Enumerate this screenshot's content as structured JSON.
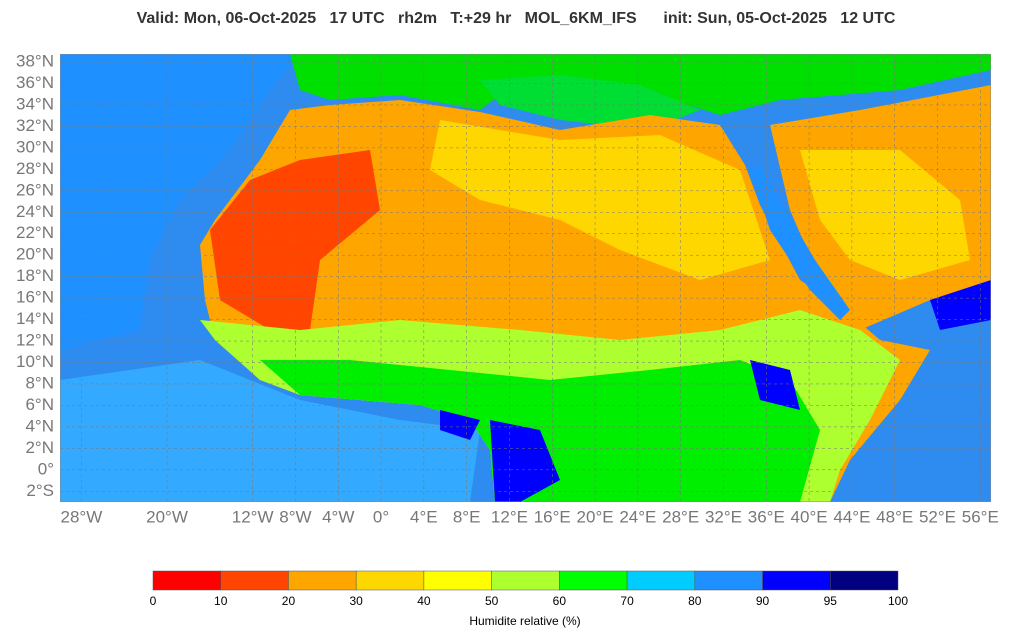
{
  "title": "Valid: Mon, 06-Oct-2025   17 UTC   rh2m   T:+29 hr   MOL_6KM_IFS      init: Sun, 05-Oct-2025   12 UTC",
  "map": {
    "lon_range": [
      -30,
      57
    ],
    "lat_range": [
      -3,
      38.75
    ],
    "lat_ticks": [
      {
        "value": 38,
        "label": "38°N"
      },
      {
        "value": 36,
        "label": "36°N"
      },
      {
        "value": 34,
        "label": "34°N"
      },
      {
        "value": 32,
        "label": "32°N"
      },
      {
        "value": 30,
        "label": "30°N"
      },
      {
        "value": 28,
        "label": "28°N"
      },
      {
        "value": 26,
        "label": "26°N"
      },
      {
        "value": 24,
        "label": "24°N"
      },
      {
        "value": 22,
        "label": "22°N"
      },
      {
        "value": 20,
        "label": "20°N"
      },
      {
        "value": 18,
        "label": "18°N"
      },
      {
        "value": 16,
        "label": "16°N"
      },
      {
        "value": 14,
        "label": "14°N"
      },
      {
        "value": 12,
        "label": "12°N"
      },
      {
        "value": 10,
        "label": "10°N"
      },
      {
        "value": 8,
        "label": "8°N"
      },
      {
        "value": 6,
        "label": "6°N"
      },
      {
        "value": 4,
        "label": "4°N"
      },
      {
        "value": 2,
        "label": "2°N"
      },
      {
        "value": 0,
        "label": "0°"
      },
      {
        "value": -2,
        "label": "2°S"
      }
    ],
    "lon_ticks": [
      {
        "value": -28,
        "label": "28°W"
      },
      {
        "value": -20,
        "label": "20°W"
      },
      {
        "value": -12,
        "label": "12°W"
      },
      {
        "value": -8,
        "label": "8°W"
      },
      {
        "value": -4,
        "label": "4°W"
      },
      {
        "value": 0,
        "label": "0°"
      },
      {
        "value": 4,
        "label": "4°E"
      },
      {
        "value": 8,
        "label": "8°E"
      },
      {
        "value": 12,
        "label": "12°E"
      },
      {
        "value": 16,
        "label": "16°E"
      },
      {
        "value": 20,
        "label": "20°E"
      },
      {
        "value": 24,
        "label": "24°E"
      },
      {
        "value": 28,
        "label": "28°E"
      },
      {
        "value": 32,
        "label": "32°E"
      },
      {
        "value": 36,
        "label": "36°E"
      },
      {
        "value": 40,
        "label": "40°E"
      },
      {
        "value": 44,
        "label": "44°E"
      },
      {
        "value": 48,
        "label": "48°E"
      },
      {
        "value": 52,
        "label": "52°E"
      },
      {
        "value": 56,
        "label": "56°E"
      }
    ]
  },
  "colorbar": {
    "colors": [
      "#ff0000",
      "#ff4500",
      "#ffa500",
      "#ffd700",
      "#ffff00",
      "#adff2f",
      "#00ff00",
      "#00ccff",
      "#1e90ff",
      "#0000ff",
      "#000080"
    ],
    "ticks": [
      0,
      10,
      20,
      30,
      40,
      50,
      60,
      70,
      80,
      90,
      95,
      100
    ],
    "label": "Humidite relative (%)"
  }
}
